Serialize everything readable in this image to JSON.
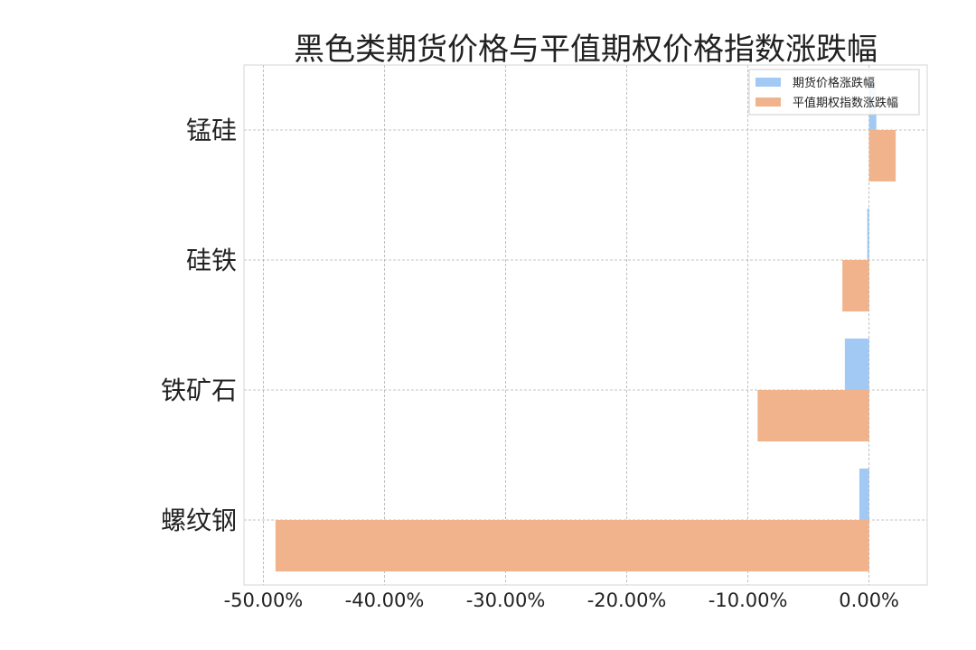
{
  "chart_data": {
    "type": "bar",
    "orientation": "horizontal",
    "title": "黑色类期货价格与平值期权价格指数涨跌幅",
    "categories": [
      "螺纹钢",
      "铁矿石",
      "硅铁",
      "锰硅"
    ],
    "series": [
      {
        "name": "期货价格涨跌幅",
        "color": "#a1c9f4",
        "values": [
          -0.8,
          -2.0,
          -0.15,
          0.6
        ]
      },
      {
        "name": "平值期权指数涨跌幅",
        "color": "#f0b38b",
        "values": [
          -49.0,
          -9.2,
          -2.2,
          2.2
        ]
      }
    ],
    "xlim": [
      -51.6,
      4.8
    ],
    "xticks": [
      -50,
      -40,
      -30,
      -20,
      -10,
      0
    ],
    "xtick_labels": [
      "-50.00%",
      "-40.00%",
      "-30.00%",
      "-20.00%",
      "-10.00%",
      "0.00%"
    ],
    "grid": true,
    "legend_position": "upper-right"
  }
}
